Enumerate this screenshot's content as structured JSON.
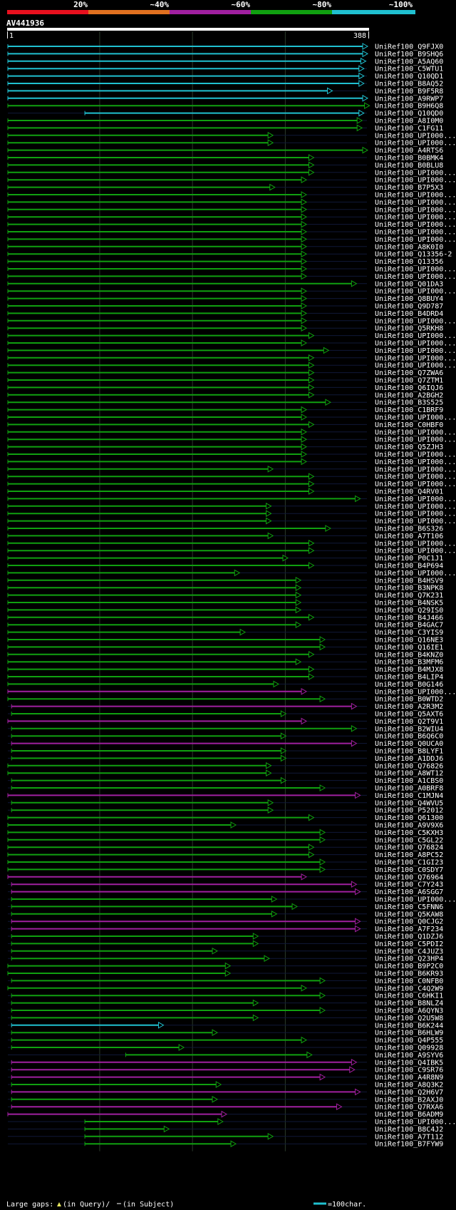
{
  "chart_data": {
    "type": "alignment-overview",
    "query": {
      "name": "AV441936",
      "start": 1,
      "end": 388,
      "start_label": "1",
      "end_label": "388"
    },
    "identity_scale": [
      {
        "label": "20%",
        "color": "#e8101e"
      },
      {
        "label": "~40%",
        "color": "#e07020"
      },
      {
        "label": "~60%",
        "color": "#a020a0"
      },
      {
        "label": "~80%",
        "color": "#10a010"
      },
      {
        "label": "~100%",
        "color": "#20c0d0"
      }
    ],
    "legend": {
      "gaps_label": "Large gaps:",
      "query_label": "(in Query)/",
      "subject_label": "(in Subject)",
      "scale_label": "=100char."
    },
    "hits": [
      {
        "name": "UniRef100_Q9FJX0",
        "start": 1,
        "end": 388,
        "color": "#20c0d0"
      },
      {
        "name": "UniRef100_B9SHQ6",
        "start": 1,
        "end": 388,
        "color": "#20c0d0"
      },
      {
        "name": "UniRef100_A5AQ60",
        "start": 1,
        "end": 386,
        "color": "#20c0d0"
      },
      {
        "name": "UniRef100_C5WTU1",
        "start": 1,
        "end": 384,
        "color": "#20c0d0"
      },
      {
        "name": "UniRef100_Q10QD1",
        "start": 1,
        "end": 384,
        "color": "#20c0d0"
      },
      {
        "name": "UniRef100_B8AQ52",
        "start": 1,
        "end": 384,
        "color": "#20c0d0"
      },
      {
        "name": "UniRef100_B9F5R8",
        "start": 1,
        "end": 350,
        "color": "#20c0d0"
      },
      {
        "name": "UniRef100_A9RWP7",
        "start": 1,
        "end": 388,
        "color": "#20c0d0"
      },
      {
        "name": "UniRef100_B9H6Q8",
        "start": 1,
        "end": 390,
        "color": "#10a010"
      },
      {
        "name": "UniRef100_Q10QD0",
        "start": 84,
        "end": 384,
        "color": "#20c0d0"
      },
      {
        "name": "UniRef100_A8I0M0",
        "start": 1,
        "end": 382,
        "color": "#10a010"
      },
      {
        "name": "UniRef100_C1FG11",
        "start": 1,
        "end": 382,
        "color": "#10a010"
      },
      {
        "name": "UniRef100_UPI000...",
        "start": 1,
        "end": 286,
        "color": "#10a010"
      },
      {
        "name": "UniRef100_UPI000...",
        "start": 1,
        "end": 286,
        "color": "#10a010"
      },
      {
        "name": "UniRef100_A4RTS6",
        "start": 1,
        "end": 388,
        "color": "#10a010"
      },
      {
        "name": "UniRef100_B0BMK4",
        "start": 1,
        "end": 330,
        "color": "#10a010"
      },
      {
        "name": "UniRef100_B0BLU8",
        "start": 1,
        "end": 330,
        "color": "#10a010"
      },
      {
        "name": "UniRef100_UPI000...",
        "start": 1,
        "end": 330,
        "color": "#10a010"
      },
      {
        "name": "UniRef100_UPI000...",
        "start": 1,
        "end": 322,
        "color": "#10a010"
      },
      {
        "name": "UniRef100_B7P5X3",
        "start": 1,
        "end": 288,
        "color": "#10a010"
      },
      {
        "name": "UniRef100_UPI000...",
        "start": 1,
        "end": 322,
        "color": "#10a010"
      },
      {
        "name": "UniRef100_UPI000...",
        "start": 1,
        "end": 322,
        "color": "#10a010"
      },
      {
        "name": "UniRef100_UPI000...",
        "start": 1,
        "end": 322,
        "color": "#10a010"
      },
      {
        "name": "UniRef100_UPI000...",
        "start": 1,
        "end": 322,
        "color": "#10a010"
      },
      {
        "name": "UniRef100_UPI000...",
        "start": 1,
        "end": 322,
        "color": "#10a010"
      },
      {
        "name": "UniRef100_UPI000...",
        "start": 1,
        "end": 322,
        "color": "#10a010"
      },
      {
        "name": "UniRef100_UPI000...",
        "start": 1,
        "end": 322,
        "color": "#10a010"
      },
      {
        "name": "UniRef100_A8K0I0",
        "start": 1,
        "end": 322,
        "color": "#10a010"
      },
      {
        "name": "UniRef100_Q13356-2",
        "start": 1,
        "end": 322,
        "color": "#10a010"
      },
      {
        "name": "UniRef100_Q13356",
        "start": 1,
        "end": 322,
        "color": "#10a010"
      },
      {
        "name": "UniRef100_UPI000...",
        "start": 1,
        "end": 322,
        "color": "#10a010"
      },
      {
        "name": "UniRef100_UPI000...",
        "start": 1,
        "end": 322,
        "color": "#10a010"
      },
      {
        "name": "UniRef100_Q01DA3",
        "start": 1,
        "end": 376,
        "color": "#10a010"
      },
      {
        "name": "UniRef100_UPI000...",
        "start": 1,
        "end": 322,
        "color": "#10a010"
      },
      {
        "name": "UniRef100_Q8BUY4",
        "start": 1,
        "end": 322,
        "color": "#10a010"
      },
      {
        "name": "UniRef100_Q9D787",
        "start": 1,
        "end": 322,
        "color": "#10a010"
      },
      {
        "name": "UniRef100_B4DRD4",
        "start": 1,
        "end": 322,
        "color": "#10a010"
      },
      {
        "name": "UniRef100_UPI000...",
        "start": 1,
        "end": 322,
        "color": "#10a010"
      },
      {
        "name": "UniRef100_Q5RKH8",
        "start": 1,
        "end": 322,
        "color": "#10a010"
      },
      {
        "name": "UniRef100_UPI000...",
        "start": 1,
        "end": 330,
        "color": "#10a010"
      },
      {
        "name": "UniRef100_UPI000...",
        "start": 1,
        "end": 322,
        "color": "#10a010"
      },
      {
        "name": "UniRef100_UPI000...",
        "start": 1,
        "end": 346,
        "color": "#10a010"
      },
      {
        "name": "UniRef100_UPI000...",
        "start": 1,
        "end": 330,
        "color": "#10a010"
      },
      {
        "name": "UniRef100_UPI000...",
        "start": 1,
        "end": 330,
        "color": "#10a010"
      },
      {
        "name": "UniRef100_Q7ZWA6",
        "start": 1,
        "end": 330,
        "color": "#10a010"
      },
      {
        "name": "UniRef100_Q7ZTM1",
        "start": 1,
        "end": 330,
        "color": "#10a010"
      },
      {
        "name": "UniRef100_Q6IQJ6",
        "start": 1,
        "end": 330,
        "color": "#10a010"
      },
      {
        "name": "UniRef100_A2BGH2",
        "start": 1,
        "end": 330,
        "color": "#10a010"
      },
      {
        "name": "UniRef100_B3S525",
        "start": 1,
        "end": 348,
        "color": "#10a010"
      },
      {
        "name": "UniRef100_C1BRF9",
        "start": 1,
        "end": 322,
        "color": "#10a010"
      },
      {
        "name": "UniRef100_UPI000...",
        "start": 1,
        "end": 322,
        "color": "#10a010"
      },
      {
        "name": "UniRef100_C0HBF0",
        "start": 1,
        "end": 330,
        "color": "#10a010"
      },
      {
        "name": "UniRef100_UPI000...",
        "start": 1,
        "end": 322,
        "color": "#10a010"
      },
      {
        "name": "UniRef100_UPI000...",
        "start": 1,
        "end": 322,
        "color": "#10a010"
      },
      {
        "name": "UniRef100_Q5ZJH3",
        "start": 1,
        "end": 322,
        "color": "#10a010"
      },
      {
        "name": "UniRef100_UPI000...",
        "start": 1,
        "end": 322,
        "color": "#10a010"
      },
      {
        "name": "UniRef100_UPI000...",
        "start": 1,
        "end": 322,
        "color": "#10a010"
      },
      {
        "name": "UniRef100_UPI000...",
        "start": 1,
        "end": 286,
        "color": "#10a010"
      },
      {
        "name": "UniRef100_UPI000...",
        "start": 1,
        "end": 330,
        "color": "#10a010"
      },
      {
        "name": "UniRef100_UPI000...",
        "start": 1,
        "end": 330,
        "color": "#10a010"
      },
      {
        "name": "UniRef100_Q4RV01",
        "start": 1,
        "end": 330,
        "color": "#10a010"
      },
      {
        "name": "UniRef100_UPI000...",
        "start": 1,
        "end": 380,
        "color": "#10a010"
      },
      {
        "name": "UniRef100_UPI000...",
        "start": 1,
        "end": 284,
        "color": "#10a010"
      },
      {
        "name": "UniRef100_UPI000...",
        "start": 1,
        "end": 284,
        "color": "#10a010"
      },
      {
        "name": "UniRef100_UPI000...",
        "start": 1,
        "end": 284,
        "color": "#10a010"
      },
      {
        "name": "UniRef100_B6S326",
        "start": 1,
        "end": 348,
        "color": "#10a010"
      },
      {
        "name": "UniRef100_A7T106",
        "start": 1,
        "end": 286,
        "color": "#10a010"
      },
      {
        "name": "UniRef100_UPI000...",
        "start": 1,
        "end": 330,
        "color": "#10a010"
      },
      {
        "name": "UniRef100_UPI000...",
        "start": 1,
        "end": 330,
        "color": "#10a010"
      },
      {
        "name": "UniRef100_P0C1J1",
        "start": 1,
        "end": 302,
        "color": "#10a010"
      },
      {
        "name": "UniRef100_B4P694",
        "start": 1,
        "end": 330,
        "color": "#10a010"
      },
      {
        "name": "UniRef100_UPI000...",
        "start": 1,
        "end": 250,
        "color": "#10a010"
      },
      {
        "name": "UniRef100_B4HSV9",
        "start": 1,
        "end": 316,
        "color": "#10a010"
      },
      {
        "name": "UniRef100_B3NPK8",
        "start": 1,
        "end": 316,
        "color": "#10a010"
      },
      {
        "name": "UniRef100_Q7K231",
        "start": 1,
        "end": 316,
        "color": "#10a010"
      },
      {
        "name": "UniRef100_B4NSK5",
        "start": 1,
        "end": 316,
        "color": "#10a010"
      },
      {
        "name": "UniRef100_Q29IS0",
        "start": 1,
        "end": 316,
        "color": "#10a010"
      },
      {
        "name": "UniRef100_B4J466",
        "start": 1,
        "end": 330,
        "color": "#10a010"
      },
      {
        "name": "UniRef100_B4GAC7",
        "start": 1,
        "end": 316,
        "color": "#10a010"
      },
      {
        "name": "UniRef100_C3YIS9",
        "start": 1,
        "end": 256,
        "color": "#10a010"
      },
      {
        "name": "UniRef100_Q16NE3",
        "start": 1,
        "end": 342,
        "color": "#10a010"
      },
      {
        "name": "UniRef100_Q16IE1",
        "start": 1,
        "end": 342,
        "color": "#10a010"
      },
      {
        "name": "UniRef100_B4KNZ0",
        "start": 1,
        "end": 330,
        "color": "#10a010"
      },
      {
        "name": "UniRef100_B3MFM6",
        "start": 1,
        "end": 316,
        "color": "#10a010"
      },
      {
        "name": "UniRef100_B4MJX8",
        "start": 1,
        "end": 330,
        "color": "#10a010"
      },
      {
        "name": "UniRef100_B4LIP4",
        "start": 1,
        "end": 330,
        "color": "#10a010"
      },
      {
        "name": "UniRef100_B0G146",
        "start": 1,
        "end": 292,
        "color": "#10a010"
      },
      {
        "name": "UniRef100_UPI000...",
        "start": 1,
        "end": 322,
        "color": "#a020a0"
      },
      {
        "name": "UniRef100_B0WTD2",
        "start": 1,
        "end": 342,
        "color": "#10a010"
      },
      {
        "name": "UniRef100_A2R3M2",
        "start": 5,
        "end": 376,
        "color": "#a020a0"
      },
      {
        "name": "UniRef100_Q5AXT6",
        "start": 5,
        "end": 300,
        "color": "#10a010"
      },
      {
        "name": "UniRef100_Q2T9V1",
        "start": 1,
        "end": 322,
        "color": "#a020a0"
      },
      {
        "name": "UniRef100_B2WIU4",
        "start": 5,
        "end": 376,
        "color": "#10a010"
      },
      {
        "name": "UniRef100_B6Q6C0",
        "start": 5,
        "end": 300,
        "color": "#10a010"
      },
      {
        "name": "UniRef100_Q0UCA0",
        "start": 5,
        "end": 376,
        "color": "#a020a0"
      },
      {
        "name": "UniRef100_B8LYF1",
        "start": 5,
        "end": 300,
        "color": "#10a010"
      },
      {
        "name": "UniRef100_A1DDJ6",
        "start": 5,
        "end": 300,
        "color": "#10a010"
      },
      {
        "name": "UniRef100_Q76826",
        "start": 1,
        "end": 284,
        "color": "#10a010"
      },
      {
        "name": "UniRef100_A8WT12",
        "start": 1,
        "end": 284,
        "color": "#10a010"
      },
      {
        "name": "UniRef100_A1CBS0",
        "start": 5,
        "end": 300,
        "color": "#10a010"
      },
      {
        "name": "UniRef100_A0BRF8",
        "start": 5,
        "end": 342,
        "color": "#10a010"
      },
      {
        "name": "UniRef100_C1MJN4",
        "start": 1,
        "end": 380,
        "color": "#a020a0"
      },
      {
        "name": "UniRef100_Q4WVU5",
        "start": 5,
        "end": 286,
        "color": "#10a010"
      },
      {
        "name": "UniRef100_P52012",
        "start": 5,
        "end": 286,
        "color": "#10a010"
      },
      {
        "name": "UniRef100_Q61300",
        "start": 1,
        "end": 330,
        "color": "#10a010"
      },
      {
        "name": "UniRef100_A9V9X6",
        "start": 1,
        "end": 246,
        "color": "#10a010"
      },
      {
        "name": "UniRef100_C5KXH3",
        "start": 1,
        "end": 342,
        "color": "#10a010"
      },
      {
        "name": "UniRef100_C5GL22",
        "start": 1,
        "end": 342,
        "color": "#10a010"
      },
      {
        "name": "UniRef100_Q76824",
        "start": 1,
        "end": 330,
        "color": "#10a010"
      },
      {
        "name": "UniRef100_A8PC52",
        "start": 1,
        "end": 330,
        "color": "#10a010"
      },
      {
        "name": "UniRef100_C1GI23",
        "start": 1,
        "end": 342,
        "color": "#10a010"
      },
      {
        "name": "UniRef100_C0SDY7",
        "start": 1,
        "end": 342,
        "color": "#10a010"
      },
      {
        "name": "UniRef100_Q76964",
        "start": 1,
        "end": 322,
        "color": "#a020a0"
      },
      {
        "name": "UniRef100_C7Y243",
        "start": 5,
        "end": 376,
        "color": "#a020a0"
      },
      {
        "name": "UniRef100_A6SGG7",
        "start": 5,
        "end": 380,
        "color": "#a020a0"
      },
      {
        "name": "UniRef100_UPI000...",
        "start": 5,
        "end": 290,
        "color": "#10a010"
      },
      {
        "name": "UniRef100_C5FNN6",
        "start": 5,
        "end": 312,
        "color": "#10a010"
      },
      {
        "name": "UniRef100_Q5KAW8",
        "start": 5,
        "end": 290,
        "color": "#10a010"
      },
      {
        "name": "UniRef100_Q0CJG2",
        "start": 5,
        "end": 380,
        "color": "#a020a0"
      },
      {
        "name": "UniRef100_A7F234",
        "start": 5,
        "end": 380,
        "color": "#a020a0"
      },
      {
        "name": "UniRef100_Q1DZJ6",
        "start": 5,
        "end": 270,
        "color": "#10a010"
      },
      {
        "name": "UniRef100_C5PDI2",
        "start": 5,
        "end": 270,
        "color": "#10a010"
      },
      {
        "name": "UniRef100_C4JUZ3",
        "start": 5,
        "end": 226,
        "color": "#10a010"
      },
      {
        "name": "UniRef100_Q23HP4",
        "start": 5,
        "end": 282,
        "color": "#10a010"
      },
      {
        "name": "UniRef100_B9P2C0",
        "start": 1,
        "end": 240,
        "color": "#10a010"
      },
      {
        "name": "UniRef100_B6KR93",
        "start": 1,
        "end": 240,
        "color": "#10a010"
      },
      {
        "name": "UniRef100_C0NFB0",
        "start": 5,
        "end": 342,
        "color": "#10a010"
      },
      {
        "name": "UniRef100_C4Q2W9",
        "start": 1,
        "end": 322,
        "color": "#10a010"
      },
      {
        "name": "UniRef100_C6HKI1",
        "start": 5,
        "end": 342,
        "color": "#10a010"
      },
      {
        "name": "UniRef100_B8NLZ4",
        "start": 5,
        "end": 270,
        "color": "#10a010"
      },
      {
        "name": "UniRef100_A6QYN3",
        "start": 5,
        "end": 342,
        "color": "#10a010"
      },
      {
        "name": "UniRef100_Q2U5W8",
        "start": 5,
        "end": 270,
        "color": "#10a010"
      },
      {
        "name": "UniRef100_B6K244",
        "start": 5,
        "end": 168,
        "color": "#20c0d0"
      },
      {
        "name": "UniRef100_B6HLW9",
        "start": 5,
        "end": 226,
        "color": "#10a010"
      },
      {
        "name": "UniRef100_Q4P555",
        "start": 5,
        "end": 322,
        "color": "#10a010"
      },
      {
        "name": "UniRef100_Q09928",
        "start": 5,
        "end": 190,
        "color": "#10a010"
      },
      {
        "name": "UniRef100_A9SYV6",
        "start": 128,
        "end": 328,
        "color": "#10a010"
      },
      {
        "name": "UniRef100_Q4IBK5",
        "start": 5,
        "end": 376,
        "color": "#a020a0"
      },
      {
        "name": "UniRef100_C9SR76",
        "start": 5,
        "end": 374,
        "color": "#a020a0"
      },
      {
        "name": "UniRef100_A4R8N9",
        "start": 5,
        "end": 342,
        "color": "#a020a0"
      },
      {
        "name": "UniRef100_A8Q3K2",
        "start": 5,
        "end": 230,
        "color": "#10a010"
      },
      {
        "name": "UniRef100_Q2H6V7",
        "start": 5,
        "end": 380,
        "color": "#a020a0"
      },
      {
        "name": "UniRef100_B2AXJ0",
        "start": 5,
        "end": 226,
        "color": "#10a010"
      },
      {
        "name": "UniRef100_Q7RXA6",
        "start": 5,
        "end": 360,
        "color": "#a020a0"
      },
      {
        "name": "UniRef100_B6ADM9",
        "start": 1,
        "end": 236,
        "color": "#a020a0"
      },
      {
        "name": "UniRef100_UPI000...",
        "start": 84,
        "end": 232,
        "color": "#10a010"
      },
      {
        "name": "UniRef100_B8C4J2",
        "start": 84,
        "end": 174,
        "color": "#10a010"
      },
      {
        "name": "UniRef100_A7T112",
        "start": 84,
        "end": 286,
        "color": "#10a010"
      },
      {
        "name": "UniRef100_B7FYW9",
        "start": 84,
        "end": 246,
        "color": "#10a010"
      }
    ]
  }
}
